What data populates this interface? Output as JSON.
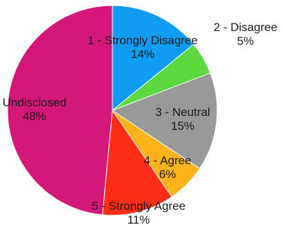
{
  "chart_data": {
    "type": "pie",
    "title": "",
    "start_angle_deg": 0,
    "direction": "clockwise",
    "slices": [
      {
        "label": "1 - Strongly Disagree",
        "value": 14,
        "display": "14%",
        "color": "#0f9cf5"
      },
      {
        "label": "2 - Disagree",
        "value": 5,
        "display": "5%",
        "color": "#5bd93f"
      },
      {
        "label": "3 - Neutral",
        "value": 15,
        "display": "15%",
        "color": "#999999"
      },
      {
        "label": "4 - Agree",
        "value": 6,
        "display": "6%",
        "color": "#ffb31a"
      },
      {
        "label": "5 - Strongly Agree",
        "value": 11,
        "display": "11%",
        "color": "#ff2e14"
      },
      {
        "label": "Undisclosed",
        "value": 48,
        "display": "48%",
        "color": "#d4187a"
      }
    ]
  }
}
